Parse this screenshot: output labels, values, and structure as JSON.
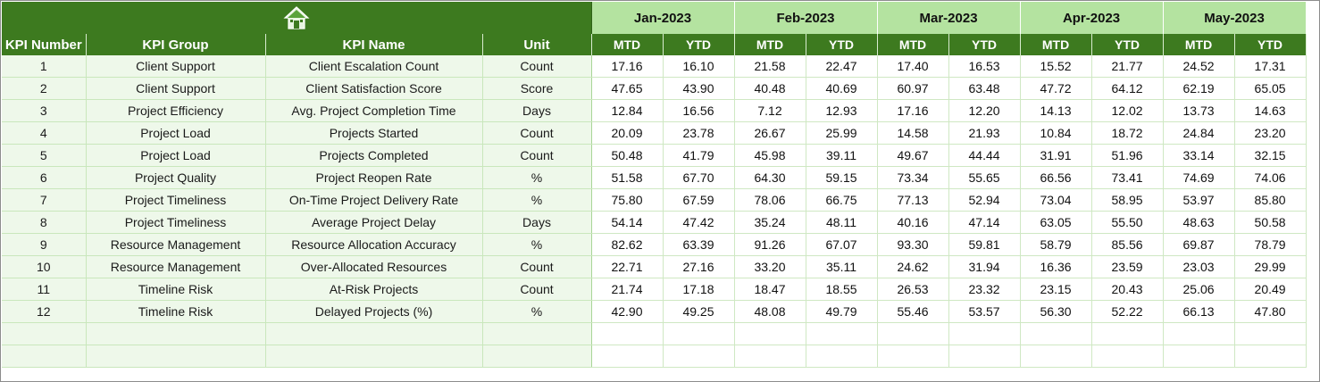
{
  "colors": {
    "header_dark_green": "#3d7a1f",
    "month_light_green": "#b4e3a0",
    "row_left_tint": "#eef8ea"
  },
  "banner": {
    "icon": "home-icon"
  },
  "months": [
    "Jan-2023",
    "Feb-2023",
    "Mar-2023",
    "Apr-2023",
    "May-2023"
  ],
  "headers": {
    "kpi_number": "KPI Number",
    "kpi_group": "KPI Group",
    "kpi_name": "KPI Name",
    "unit": "Unit",
    "mtd": "MTD",
    "ytd": "YTD"
  },
  "rows": [
    {
      "num": "1",
      "group": "Client Support",
      "name": "Client Escalation Count",
      "unit": "Count",
      "values": [
        "17.16",
        "16.10",
        "21.58",
        "22.47",
        "17.40",
        "16.53",
        "15.52",
        "21.77",
        "24.52",
        "17.31"
      ]
    },
    {
      "num": "2",
      "group": "Client Support",
      "name": "Client Satisfaction Score",
      "unit": "Score",
      "values": [
        "47.65",
        "43.90",
        "40.48",
        "40.69",
        "60.97",
        "63.48",
        "47.72",
        "64.12",
        "62.19",
        "65.05"
      ]
    },
    {
      "num": "3",
      "group": "Project Efficiency",
      "name": "Avg. Project Completion Time",
      "unit": "Days",
      "values": [
        "12.84",
        "16.56",
        "7.12",
        "12.93",
        "17.16",
        "12.20",
        "14.13",
        "12.02",
        "13.73",
        "14.63"
      ]
    },
    {
      "num": "4",
      "group": "Project Load",
      "name": "Projects Started",
      "unit": "Count",
      "values": [
        "20.09",
        "23.78",
        "26.67",
        "25.99",
        "14.58",
        "21.93",
        "10.84",
        "18.72",
        "24.84",
        "23.20"
      ]
    },
    {
      "num": "5",
      "group": "Project Load",
      "name": "Projects Completed",
      "unit": "Count",
      "values": [
        "50.48",
        "41.79",
        "45.98",
        "39.11",
        "49.67",
        "44.44",
        "31.91",
        "51.96",
        "33.14",
        "32.15"
      ]
    },
    {
      "num": "6",
      "group": "Project Quality",
      "name": "Project Reopen Rate",
      "unit": "%",
      "values": [
        "51.58",
        "67.70",
        "64.30",
        "59.15",
        "73.34",
        "55.65",
        "66.56",
        "73.41",
        "74.69",
        "74.06"
      ]
    },
    {
      "num": "7",
      "group": "Project Timeliness",
      "name": "On-Time Project Delivery Rate",
      "unit": "%",
      "values": [
        "75.80",
        "67.59",
        "78.06",
        "66.75",
        "77.13",
        "52.94",
        "73.04",
        "58.95",
        "53.97",
        "85.80"
      ]
    },
    {
      "num": "8",
      "group": "Project Timeliness",
      "name": "Average Project Delay",
      "unit": "Days",
      "values": [
        "54.14",
        "47.42",
        "35.24",
        "48.11",
        "40.16",
        "47.14",
        "63.05",
        "55.50",
        "48.63",
        "50.58"
      ]
    },
    {
      "num": "9",
      "group": "Resource Management",
      "name": "Resource Allocation Accuracy",
      "unit": "%",
      "values": [
        "82.62",
        "63.39",
        "91.26",
        "67.07",
        "93.30",
        "59.81",
        "58.79",
        "85.56",
        "69.87",
        "78.79"
      ]
    },
    {
      "num": "10",
      "group": "Resource Management",
      "name": "Over-Allocated Resources",
      "unit": "Count",
      "values": [
        "22.71",
        "27.16",
        "33.20",
        "35.11",
        "24.62",
        "31.94",
        "16.36",
        "23.59",
        "23.03",
        "29.99"
      ]
    },
    {
      "num": "11",
      "group": "Timeline Risk",
      "name": "At-Risk Projects",
      "unit": "Count",
      "values": [
        "21.74",
        "17.18",
        "18.47",
        "18.55",
        "26.53",
        "23.32",
        "23.15",
        "20.43",
        "25.06",
        "20.49"
      ]
    },
    {
      "num": "12",
      "group": "Timeline Risk",
      "name": "Delayed Projects (%)",
      "unit": "%",
      "values": [
        "42.90",
        "49.25",
        "48.08",
        "49.79",
        "55.46",
        "53.57",
        "56.30",
        "52.22",
        "66.13",
        "47.80"
      ]
    }
  ],
  "blank_rows": 2
}
